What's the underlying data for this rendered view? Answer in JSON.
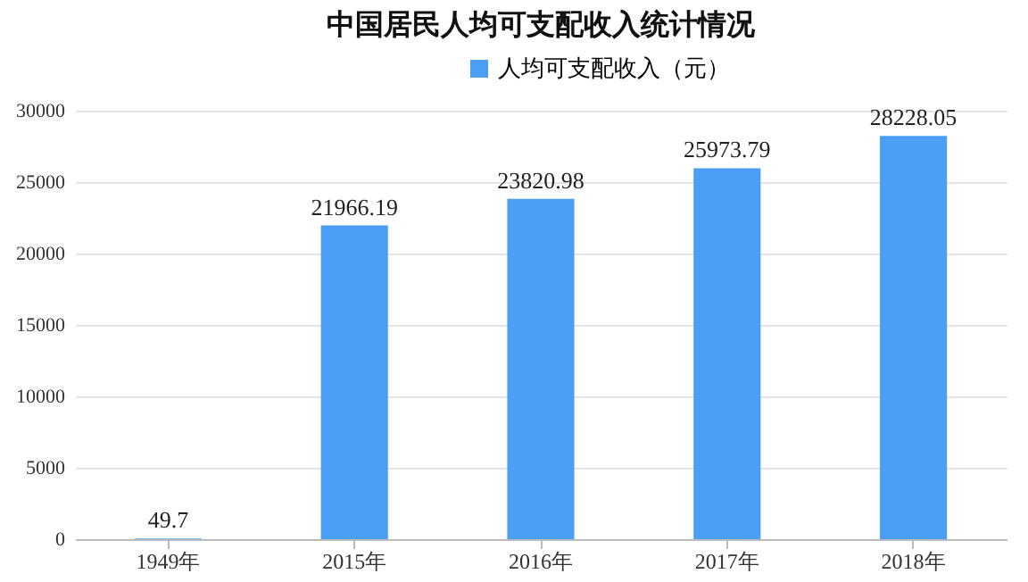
{
  "chart_data": {
    "type": "bar",
    "title": "中国居民人均可支配收入统计情况",
    "categories": [
      "1949年",
      "2015年",
      "2016年",
      "2017年",
      "2018年"
    ],
    "series": [
      {
        "name": "人均可支配收入（元）",
        "color": "#4a9ff5",
        "values": [
          49.7,
          21966.19,
          23820.98,
          25973.79,
          28228.05
        ]
      }
    ],
    "ylim": [
      0,
      30000
    ],
    "yticks": [
      0,
      5000,
      10000,
      15000,
      20000,
      25000,
      30000
    ],
    "grid": "y",
    "legend": "top",
    "data_labels": true
  }
}
